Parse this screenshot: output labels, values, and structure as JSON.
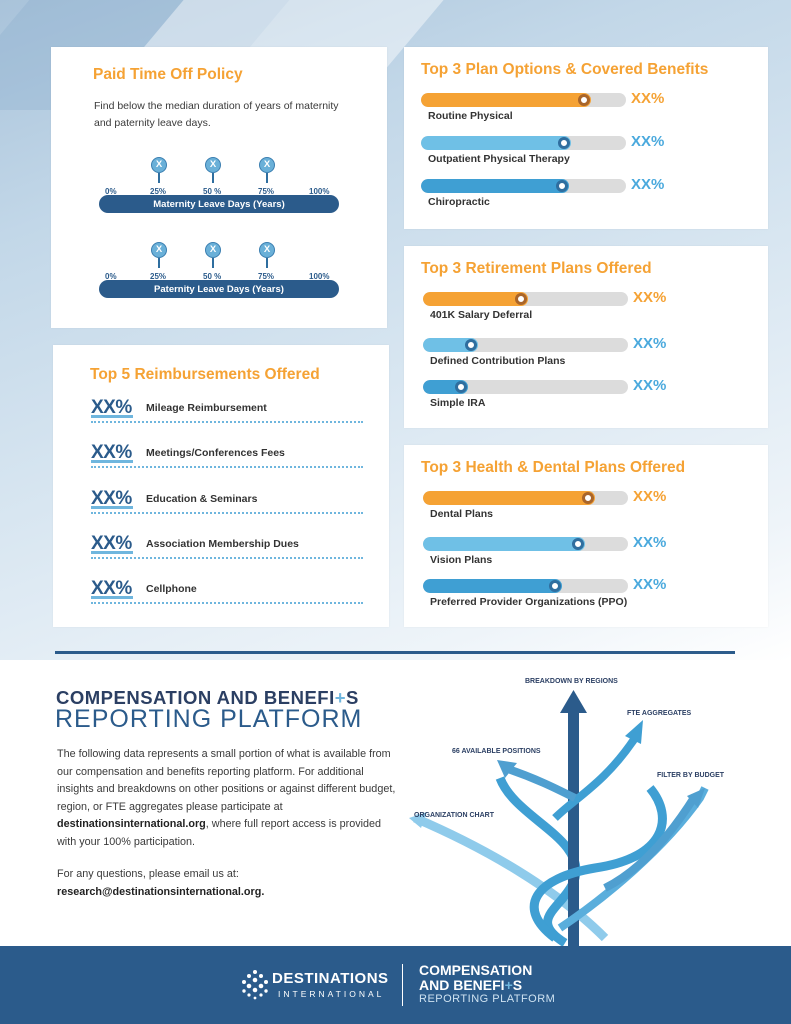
{
  "pto": {
    "title": "Paid Time Off Policy",
    "description": "Find below the median duration of years of maternity and paternity leave days.",
    "marker": "X",
    "ticks": [
      "0%",
      "25%",
      "50 %",
      "75%",
      "100%"
    ],
    "maternity_label": "Maternity Leave Days (Years)",
    "paternity_label": "Paternity Leave Days (Years)"
  },
  "plans": {
    "title": "Top 3 Plan Options & Covered Benefits",
    "items": [
      {
        "label": "Routine Physical",
        "value": "XX%",
        "level": 0.83,
        "color": "#f5a234"
      },
      {
        "label": "Outpatient Physical Therapy",
        "value": "XX%",
        "level": 0.73,
        "color": "#6fc0e6"
      },
      {
        "label": "Chiropractic",
        "value": "XX%",
        "level": 0.72,
        "color": "#3f9fd3"
      }
    ]
  },
  "retirement": {
    "title": "Top 3 Retirement Plans Offered",
    "items": [
      {
        "label": "401K Salary Deferral",
        "value": "XX%",
        "level": 0.51,
        "color": "#f5a234"
      },
      {
        "label": "Defined Contribution Plans",
        "value": "XX%",
        "level": 0.27,
        "color": "#6fc0e6"
      },
      {
        "label": "Simple IRA",
        "value": "XX%",
        "level": 0.22,
        "color": "#3f9fd3"
      }
    ]
  },
  "health": {
    "title": "Top 3 Health & Dental Plans Offered",
    "items": [
      {
        "label": "Dental Plans",
        "value": "XX%",
        "level": 0.84,
        "color": "#f5a234"
      },
      {
        "label": "Vision Plans",
        "value": "XX%",
        "level": 0.79,
        "color": "#6fc0e6"
      },
      {
        "label": "Preferred Provider Organizations (PPO)",
        "value": "XX%",
        "level": 0.68,
        "color": "#3f9fd3"
      }
    ]
  },
  "reimbursements": {
    "title": "Top 5 Reimbursements Offered",
    "items": [
      {
        "value": "XX%",
        "label": "Mileage Reimbursement"
      },
      {
        "value": "XX%",
        "label": "Meetings/Conferences Fees"
      },
      {
        "value": "XX%",
        "label": "Education & Seminars"
      },
      {
        "value": "XX%",
        "label": "Association Membership Dues"
      },
      {
        "value": "XX%",
        "label": "Cellphone"
      }
    ]
  },
  "platform": {
    "title_line1_a": "COMPENSATION AND BENEFI",
    "title_line1_plus": "+",
    "title_line1_b": "S",
    "title_line2": "REPORTING PLATFORM",
    "body_pre": "The following data represents a small portion of what is available from our compensation and benefits reporting platform. For additional insights and breakdowns on other positions or against different budget, region, or FTE aggregates please participate at ",
    "body_link": "destinationsinternational.org",
    "body_post": ", where full report access is provided with your 100% participation.",
    "question": "For any questions, please email us at:",
    "email": "research@destinationsinternational.org."
  },
  "diagram": {
    "labels": {
      "regions": "BREAKDOWN BY REGIONS",
      "fte": "FTE AGGREGATES",
      "positions": "66 AVAILABLE POSITIONS",
      "budget": "FILTER BY BUDGET",
      "org": "ORGANIZATION CHART"
    }
  },
  "footer": {
    "org_name": "DESTINATIONS",
    "org_sub": "INTERNATIONAL",
    "cb_line1": "COMPENSATION",
    "cb_line2_a": "AND BENEFI",
    "cb_line2_plus": "+",
    "cb_line2_b": "S",
    "cb_line3": "REPORTING PLATFORM"
  }
}
